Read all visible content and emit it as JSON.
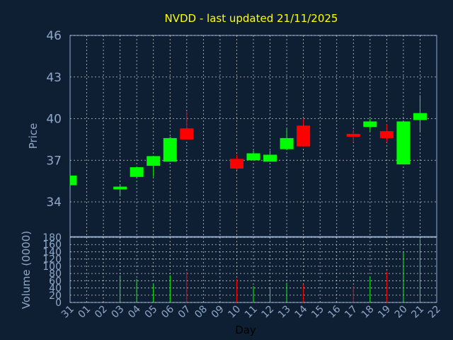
{
  "chart_data": {
    "type": "candlestick",
    "title": "NVDD - last updated 21/11/2025",
    "xlabel": "Day",
    "price_ylabel": "Price",
    "volume_ylabel": "Volume (0000)",
    "x_ticks": [
      "31",
      "01",
      "02",
      "03",
      "04",
      "05",
      "06",
      "07",
      "08",
      "09",
      "10",
      "11",
      "12",
      "13",
      "14",
      "15",
      "16",
      "17",
      "18",
      "19",
      "20",
      "21",
      "22"
    ],
    "price_ylim": [
      31.5,
      46
    ],
    "price_ticks": [
      "34",
      "37",
      "40",
      "43",
      "46"
    ],
    "volume_ylim": [
      0,
      180
    ],
    "volume_ticks": [
      "0",
      "20",
      "40",
      "60",
      "80",
      "100",
      "120",
      "140",
      "160",
      "180"
    ],
    "colors": {
      "up": "#00ff00",
      "down": "#ff0000",
      "grid": "#ffffff",
      "background": "#0f1f33"
    },
    "candles": [
      {
        "x": 0,
        "open": 35.2,
        "high": 35.9,
        "low": 35.2,
        "close": 35.9,
        "volume": 0
      },
      {
        "x": 3,
        "open": 34.9,
        "high": 35.2,
        "low": 34.4,
        "close": 35.1,
        "volume": 75
      },
      {
        "x": 4,
        "open": 35.8,
        "high": 36.5,
        "low": 35.8,
        "close": 36.5,
        "volume": 65
      },
      {
        "x": 5,
        "open": 36.6,
        "high": 37.3,
        "low": 35.8,
        "close": 37.3,
        "volume": 50
      },
      {
        "x": 6,
        "open": 36.9,
        "high": 38.7,
        "low": 36.9,
        "close": 38.6,
        "volume": 75
      },
      {
        "x": 7,
        "open": 39.3,
        "high": 40.5,
        "low": 38.5,
        "close": 38.5,
        "volume": 85
      },
      {
        "x": 10,
        "open": 37.1,
        "high": 37.4,
        "low": 36.3,
        "close": 36.4,
        "volume": 65
      },
      {
        "x": 11,
        "open": 37.0,
        "high": 37.7,
        "low": 37.0,
        "close": 37.5,
        "volume": 45
      },
      {
        "x": 12,
        "open": 36.9,
        "high": 37.7,
        "low": 36.9,
        "close": 37.4,
        "volume": 40
      },
      {
        "x": 13,
        "open": 37.8,
        "high": 39.3,
        "low": 37.8,
        "close": 38.6,
        "volume": 55
      },
      {
        "x": 14,
        "open": 39.5,
        "high": 40.0,
        "low": 38.0,
        "close": 38.0,
        "volume": 50
      },
      {
        "x": 17,
        "open": 38.9,
        "high": 39.2,
        "low": 38.3,
        "close": 38.7,
        "volume": 45
      },
      {
        "x": 18,
        "open": 39.4,
        "high": 40.0,
        "low": 39.1,
        "close": 39.8,
        "volume": 70
      },
      {
        "x": 19,
        "open": 39.1,
        "high": 39.6,
        "low": 38.3,
        "close": 38.6,
        "volume": 85
      },
      {
        "x": 20,
        "open": 36.7,
        "high": 39.8,
        "low": 36.7,
        "close": 39.8,
        "volume": 140
      },
      {
        "x": 21,
        "open": 39.9,
        "high": 41.7,
        "low": 39.1,
        "close": 40.4,
        "volume": 175
      }
    ]
  }
}
